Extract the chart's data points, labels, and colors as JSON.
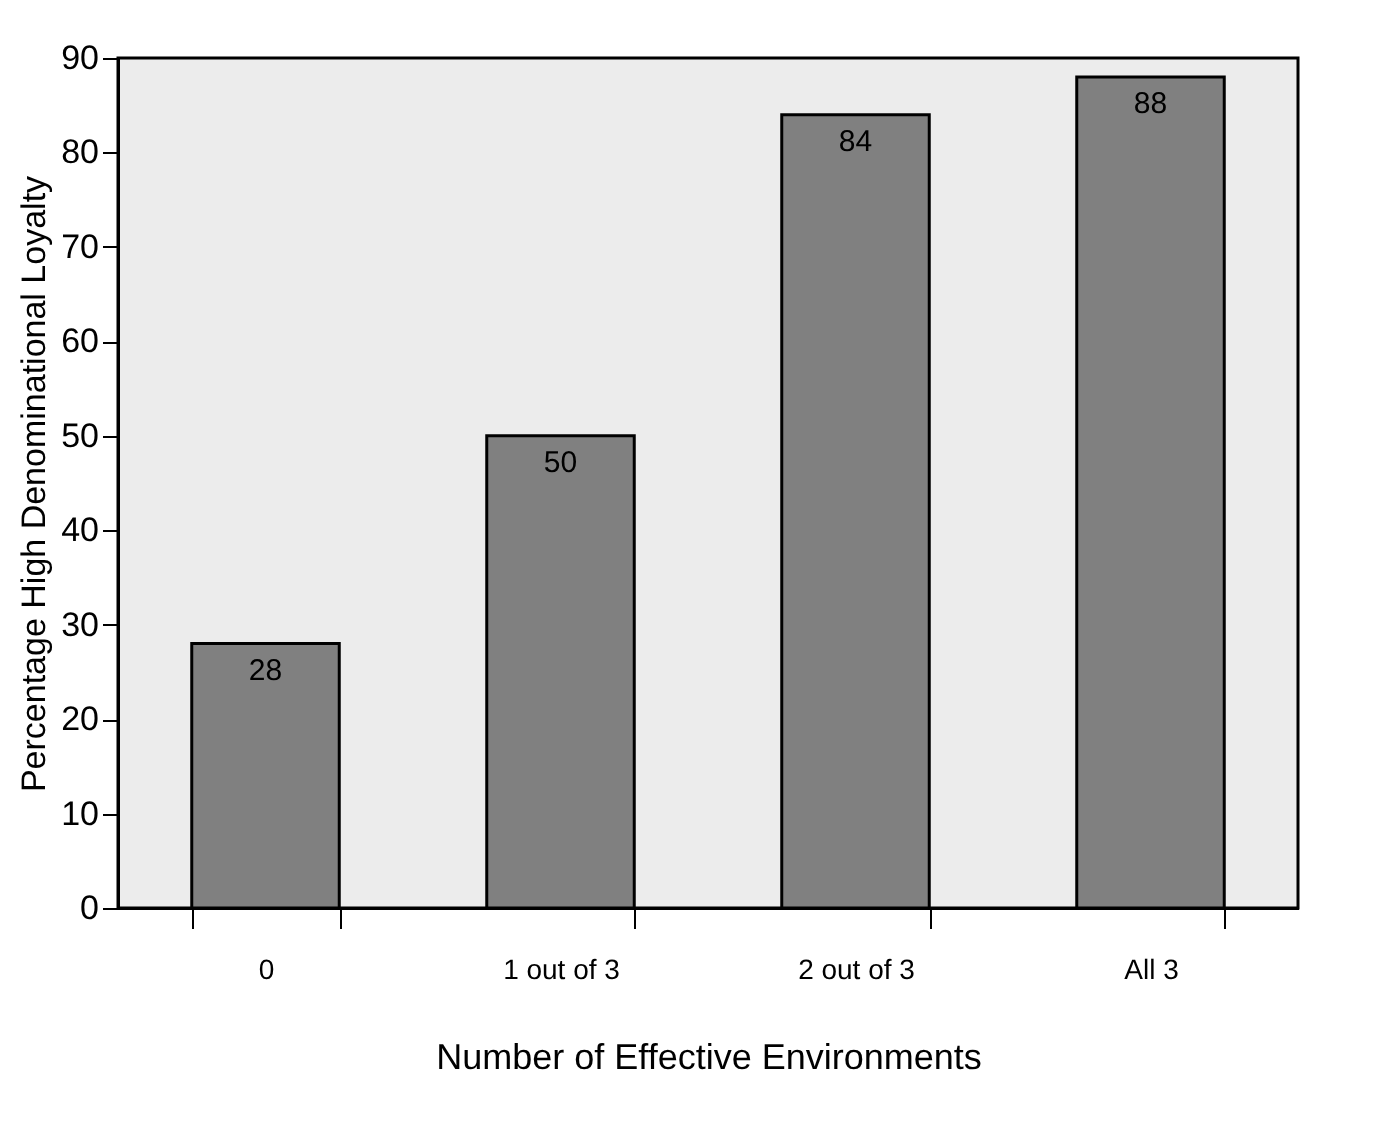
{
  "chart_data": {
    "type": "bar",
    "xlabel": "Number of Effective Environments",
    "ylabel": "Percentage High Denominational Loyalty",
    "categories": [
      "0",
      "1 out of 3",
      "2 out of 3",
      "All 3"
    ],
    "values": [
      28,
      50,
      84,
      88
    ],
    "color": "#808080",
    "ylim": [
      0,
      90
    ],
    "yticks": [
      0,
      10,
      20,
      30,
      40,
      50,
      60,
      70,
      80,
      90
    ],
    "data_labels": true,
    "grid": false
  }
}
